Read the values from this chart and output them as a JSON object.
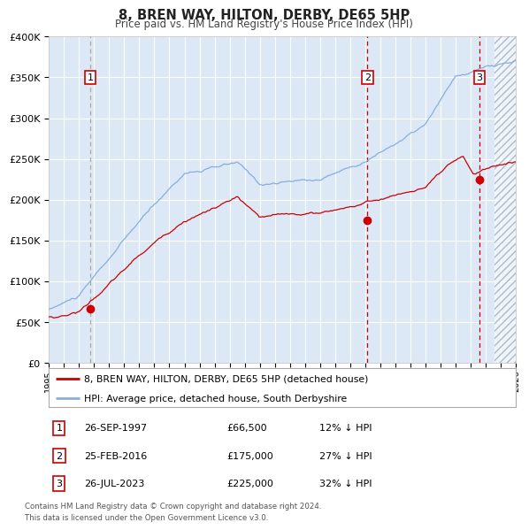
{
  "title": "8, BREN WAY, HILTON, DERBY, DE65 5HP",
  "subtitle": "Price paid vs. HM Land Registry's House Price Index (HPI)",
  "legend_line1": "8, BREN WAY, HILTON, DERBY, DE65 5HP (detached house)",
  "legend_line2": "HPI: Average price, detached house, South Derbyshire",
  "footnote1": "Contains HM Land Registry data © Crown copyright and database right 2024.",
  "footnote2": "This data is licensed under the Open Government Licence v3.0.",
  "sale_color": "#cc0000",
  "hpi_color": "#88aedd",
  "plot_bg": "#dce8f5",
  "grid_color": "#ffffff",
  "sale1_date": 1997.74,
  "sale1_price": 66500,
  "sale2_date": 2016.15,
  "sale2_price": 175000,
  "sale3_date": 2023.57,
  "sale3_price": 225000,
  "xmin": 1995,
  "xmax": 2026,
  "ymin": 0,
  "ymax": 400000,
  "yticks": [
    0,
    50000,
    100000,
    150000,
    200000,
    250000,
    300000,
    350000,
    400000
  ],
  "ytick_labels": [
    "£0",
    "£50K",
    "£100K",
    "£150K",
    "£200K",
    "£250K",
    "£300K",
    "£350K",
    "£400K"
  ],
  "table_data": [
    {
      "num": "1",
      "date": "26-SEP-1997",
      "price": "£66,500",
      "pct": "12% ↓ HPI"
    },
    {
      "num": "2",
      "date": "25-FEB-2016",
      "price": "£175,000",
      "pct": "27% ↓ HPI"
    },
    {
      "num": "3",
      "date": "26-JUL-2023",
      "price": "£225,000",
      "pct": "32% ↓ HPI"
    }
  ]
}
